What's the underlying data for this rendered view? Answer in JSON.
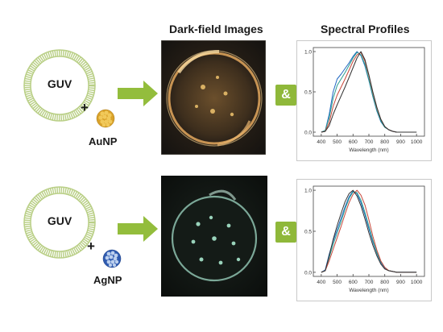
{
  "headings": {
    "dark_field": "Dark-field Images",
    "spectral": "Spectral Profiles"
  },
  "rows": [
    {
      "vesicle_label": "GUV",
      "plus": "+",
      "particle_label": "AuNP",
      "particle_color": "#d9a22a",
      "connector": "&"
    },
    {
      "vesicle_label": "GUV",
      "plus": "+",
      "particle_label": "AgNP",
      "particle_color": "#3f6fc6",
      "connector": "&"
    }
  ],
  "colors": {
    "membrane": "#b9cf86",
    "arrow": "#93bd3c",
    "amp_box": "#8fb83a"
  },
  "chart_data": [
    {
      "type": "line",
      "xlabel": "Wavelength (nm)",
      "ylabel": "",
      "xlim": [
        350,
        1050
      ],
      "ylim": [
        -0.05,
        1.05
      ],
      "xticks": [
        "400",
        "500",
        "600",
        "700",
        "800",
        "900",
        "1000"
      ],
      "yticks": [
        "0.0",
        "0.5",
        "1.0"
      ],
      "series": [
        {
          "color": "#1f66c2",
          "x": [
            400,
            425,
            450,
            475,
            500,
            525,
            550,
            575,
            600,
            625,
            650,
            675,
            700,
            725,
            750,
            775,
            800,
            825,
            850,
            875,
            900,
            950,
            1000
          ],
          "y": [
            0.0,
            0.02,
            0.22,
            0.5,
            0.66,
            0.72,
            0.79,
            0.86,
            0.94,
            1.0,
            0.95,
            0.82,
            0.64,
            0.44,
            0.26,
            0.13,
            0.06,
            0.03,
            0.01,
            0.0,
            0.0,
            0.0,
            0.0
          ]
        },
        {
          "color": "#2a9d8f",
          "x": [
            400,
            425,
            450,
            475,
            500,
            525,
            550,
            575,
            600,
            625,
            650,
            675,
            700,
            725,
            750,
            775,
            800,
            825,
            850,
            875,
            900,
            950,
            1000
          ],
          "y": [
            0.0,
            0.02,
            0.18,
            0.42,
            0.58,
            0.66,
            0.74,
            0.83,
            0.92,
            0.99,
            0.96,
            0.84,
            0.65,
            0.45,
            0.27,
            0.14,
            0.06,
            0.03,
            0.01,
            0.0,
            0.0,
            0.0,
            0.0
          ]
        },
        {
          "color": "#c8473a",
          "x": [
            400,
            425,
            450,
            475,
            500,
            525,
            550,
            575,
            600,
            625,
            650,
            675,
            700,
            725,
            750,
            775,
            800,
            825,
            850,
            875,
            900,
            950,
            1000
          ],
          "y": [
            0.0,
            0.01,
            0.12,
            0.32,
            0.46,
            0.56,
            0.66,
            0.77,
            0.88,
            0.96,
            0.99,
            0.88,
            0.7,
            0.49,
            0.3,
            0.16,
            0.07,
            0.03,
            0.01,
            0.0,
            0.0,
            0.0,
            0.0
          ]
        },
        {
          "color": "#333333",
          "x": [
            400,
            425,
            450,
            475,
            500,
            525,
            550,
            575,
            600,
            625,
            650,
            675,
            700,
            725,
            750,
            775,
            800,
            825,
            850,
            875,
            900,
            950,
            1000
          ],
          "y": [
            0.0,
            0.01,
            0.08,
            0.22,
            0.34,
            0.45,
            0.56,
            0.68,
            0.8,
            0.92,
            1.0,
            0.9,
            0.71,
            0.5,
            0.31,
            0.16,
            0.07,
            0.03,
            0.01,
            0.0,
            0.0,
            0.0,
            0.0
          ]
        }
      ]
    },
    {
      "type": "line",
      "xlabel": "Wavelength (nm)",
      "ylabel": "",
      "xlim": [
        350,
        1050
      ],
      "ylim": [
        -0.05,
        1.05
      ],
      "xticks": [
        "400",
        "500",
        "600",
        "700",
        "800",
        "900",
        "1000"
      ],
      "yticks": [
        "0.0",
        "0.5",
        "1.0"
      ],
      "series": [
        {
          "color": "#1f66c2",
          "x": [
            400,
            425,
            450,
            475,
            500,
            525,
            550,
            575,
            600,
            625,
            650,
            675,
            700,
            725,
            750,
            775,
            800,
            825,
            850,
            875,
            900,
            950,
            1000
          ],
          "y": [
            0.0,
            0.03,
            0.22,
            0.38,
            0.52,
            0.66,
            0.8,
            0.92,
            0.99,
            0.96,
            0.85,
            0.7,
            0.53,
            0.37,
            0.23,
            0.12,
            0.05,
            0.02,
            0.01,
            0.0,
            0.0,
            0.0,
            0.0
          ]
        },
        {
          "color": "#2a9d8f",
          "x": [
            400,
            425,
            450,
            475,
            500,
            525,
            550,
            575,
            600,
            625,
            650,
            675,
            700,
            725,
            750,
            775,
            800,
            825,
            850,
            875,
            900,
            950,
            1000
          ],
          "y": [
            0.0,
            0.02,
            0.18,
            0.34,
            0.48,
            0.62,
            0.77,
            0.9,
            0.98,
            0.97,
            0.88,
            0.73,
            0.56,
            0.39,
            0.24,
            0.13,
            0.06,
            0.02,
            0.01,
            0.0,
            0.0,
            0.0,
            0.0
          ]
        },
        {
          "color": "#c8473a",
          "x": [
            400,
            425,
            450,
            475,
            500,
            525,
            550,
            575,
            600,
            625,
            650,
            675,
            700,
            725,
            750,
            775,
            800,
            825,
            850,
            875,
            900,
            950,
            1000
          ],
          "y": [
            0.0,
            0.02,
            0.14,
            0.28,
            0.42,
            0.56,
            0.71,
            0.85,
            0.95,
            1.0,
            0.94,
            0.82,
            0.64,
            0.44,
            0.27,
            0.14,
            0.06,
            0.02,
            0.01,
            0.0,
            0.0,
            0.0,
            0.0
          ]
        },
        {
          "color": "#333333",
          "x": [
            400,
            425,
            450,
            475,
            500,
            525,
            550,
            575,
            600,
            625,
            650,
            675,
            700,
            725,
            750,
            775,
            800,
            825,
            850,
            875,
            900,
            950,
            1000
          ],
          "y": [
            0.0,
            0.02,
            0.2,
            0.4,
            0.57,
            0.72,
            0.86,
            0.96,
            1.0,
            0.93,
            0.81,
            0.65,
            0.48,
            0.33,
            0.2,
            0.1,
            0.04,
            0.02,
            0.01,
            0.0,
            0.0,
            0.0,
            0.0
          ]
        }
      ]
    }
  ]
}
